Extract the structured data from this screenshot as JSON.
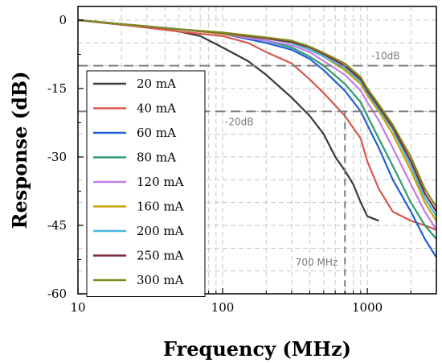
{
  "chart_data": {
    "type": "line",
    "xlabel": "Frequency (MHz)",
    "ylabel": "Response (dB)",
    "x_scale": "log",
    "xlim": [
      10,
      3000
    ],
    "ylim": [
      -60,
      3
    ],
    "x_ticks": [
      10,
      100,
      1000
    ],
    "x_tick_labels": [
      "10",
      "100",
      "1000"
    ],
    "y_ticks": [
      0,
      -15,
      -30,
      -45,
      -60
    ],
    "y_tick_labels": [
      "0",
      "-15",
      "-30",
      "-45",
      "-60"
    ],
    "grid": true,
    "legend_position": "left",
    "annotations": [
      {
        "text": "-10dB",
        "y": -10
      },
      {
        "text": "-20dB",
        "y": -20
      },
      {
        "text": "700 MHz",
        "x": 700
      }
    ],
    "colors": {
      "20 mA": "#3a3a3a",
      "40 mA": "#d9574a",
      "60 mA": "#1f5fd6",
      "80 mA": "#2e9a6e",
      "120 mA": "#c07ee6",
      "160 mA": "#c9a500",
      "200 mA": "#46b6e0",
      "250 mA": "#7a2a3a",
      "300 mA": "#808a1e"
    },
    "series": [
      {
        "name": "20 mA",
        "x": [
          10,
          20,
          30,
          50,
          70,
          100,
          150,
          200,
          300,
          400,
          500,
          600,
          700,
          800,
          900,
          1000,
          1200
        ],
        "y": [
          0,
          -1,
          -1.5,
          -2.5,
          -3.5,
          -6,
          -9,
          -12,
          -17,
          -21,
          -25,
          -30,
          -33,
          -36,
          -40,
          -43,
          -44
        ]
      },
      {
        "name": "40 mA",
        "x": [
          10,
          20,
          50,
          100,
          150,
          200,
          300,
          400,
          500,
          700,
          900,
          1000,
          1200,
          1500,
          2000,
          2500,
          3000
        ],
        "y": [
          0,
          -1,
          -2.5,
          -3.5,
          -5,
          -7,
          -9.5,
          -13,
          -16,
          -21,
          -26,
          -31,
          -37,
          -42,
          -44,
          -45,
          -46
        ]
      },
      {
        "name": "60 mA",
        "x": [
          10,
          50,
          100,
          200,
          300,
          400,
          500,
          700,
          900,
          1000,
          1200,
          1500,
          2000,
          2500,
          3000
        ],
        "y": [
          0,
          -2,
          -3,
          -5,
          -6.5,
          -8.5,
          -11,
          -15.5,
          -20,
          -23,
          -28,
          -35,
          -42,
          -48,
          -52
        ]
      },
      {
        "name": "80 mA",
        "x": [
          10,
          50,
          100,
          200,
          300,
          400,
          500,
          700,
          900,
          1000,
          1200,
          1500,
          2000,
          2500,
          3000
        ],
        "y": [
          0,
          -2,
          -3,
          -4.5,
          -6,
          -8,
          -10,
          -14,
          -18,
          -21,
          -26,
          -32,
          -40,
          -45,
          -48
        ]
      },
      {
        "name": "120 mA",
        "x": [
          10,
          50,
          100,
          200,
          300,
          400,
          500,
          700,
          900,
          1000,
          1200,
          1500,
          2000,
          2500,
          3000
        ],
        "y": [
          0,
          -2,
          -3,
          -4.5,
          -5.5,
          -7,
          -9,
          -12,
          -15.5,
          -18,
          -22,
          -28,
          -36,
          -42,
          -46
        ]
      },
      {
        "name": "160 mA",
        "x": [
          10,
          50,
          100,
          200,
          300,
          400,
          500,
          700,
          900,
          1000,
          1200,
          1500,
          2000,
          2500,
          3000
        ],
        "y": [
          0,
          -2,
          -3,
          -4,
          -5,
          -6.5,
          -8,
          -11,
          -14,
          -16.5,
          -20,
          -25,
          -33,
          -40,
          -44
        ]
      },
      {
        "name": "200 mA",
        "x": [
          10,
          50,
          100,
          200,
          300,
          400,
          500,
          700,
          900,
          1000,
          1200,
          1500,
          2000,
          2500,
          3000
        ],
        "y": [
          0,
          -2,
          -2.8,
          -4,
          -5,
          -6.5,
          -8,
          -10.5,
          -13.5,
          -16,
          -19.5,
          -24,
          -32,
          -39,
          -43
        ]
      },
      {
        "name": "250 mA",
        "x": [
          10,
          50,
          100,
          200,
          300,
          400,
          500,
          700,
          900,
          1000,
          1200,
          1500,
          2000,
          2500,
          3000
        ],
        "y": [
          0,
          -2,
          -2.8,
          -4,
          -4.8,
          -6,
          -7.5,
          -10,
          -13,
          -15.5,
          -19,
          -23.5,
          -31,
          -38,
          -42
        ]
      },
      {
        "name": "300 mA",
        "x": [
          10,
          50,
          100,
          200,
          300,
          400,
          500,
          700,
          900,
          1000,
          1200,
          1500,
          2000,
          2500,
          3000
        ],
        "y": [
          0,
          -2,
          -2.7,
          -3.8,
          -4.5,
          -5.8,
          -7.2,
          -9.5,
          -12.5,
          -15,
          -18.5,
          -23,
          -30,
          -37,
          -41
        ]
      }
    ]
  }
}
